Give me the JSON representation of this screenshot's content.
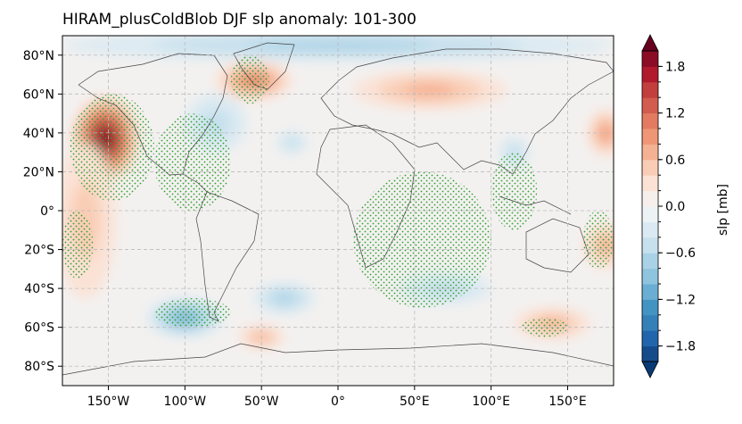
{
  "chart_data": {
    "type": "heatmap",
    "title": "HIRAM_plusColdBlob DJF slp anomaly: 101-300",
    "projection": "PlateCarree",
    "xlim": [
      -180,
      180
    ],
    "ylim": [
      -90,
      90
    ],
    "grid": true,
    "x_ticks": [
      -150,
      -100,
      -50,
      0,
      50,
      100,
      150
    ],
    "x_tick_labels": [
      "150°W",
      "100°W",
      "50°W",
      "0°",
      "50°E",
      "100°E",
      "150°E"
    ],
    "y_ticks": [
      80,
      60,
      40,
      20,
      0,
      -20,
      -40,
      -60,
      -80
    ],
    "y_tick_labels": [
      "80°N",
      "60°N",
      "40°N",
      "20°N",
      "0°",
      "20°S",
      "40°S",
      "60°S",
      "80°S"
    ],
    "colorbar": {
      "label": "slp [mb]",
      "levels_min": -2.0,
      "levels_max": 2.0,
      "level_step": 0.2,
      "extend": "both",
      "cmap": "RdBu_r",
      "tick_values": [
        1.8,
        1.2,
        0.6,
        0.0,
        -0.6,
        -1.2,
        -1.8
      ],
      "tick_labels": [
        "1.8",
        "1.2",
        "0.6",
        "0.0",
        "−0.6",
        "−1.2",
        "−1.8"
      ],
      "colors": [
        "#083a75",
        "#154b8a",
        "#2166ac",
        "#3580b9",
        "#4393c3",
        "#6aaed3",
        "#8ec4de",
        "#aad2e6",
        "#c6e0ed",
        "#dbeaf2",
        "#edf2f5",
        "#f7efec",
        "#fbe2d5",
        "#f9cdb5",
        "#f5b193",
        "#ee9675",
        "#e27b62",
        "#d15c4f",
        "#c23f3d",
        "#b01a2c",
        "#8a0c25",
        "#67001f"
      ]
    },
    "anomaly_features": [
      {
        "lon": -152,
        "lat": 37,
        "value": 2.0,
        "rx": 22,
        "ry": 22
      },
      {
        "lon": -55,
        "lat": 67,
        "value": 0.9,
        "rx": 25,
        "ry": 10
      },
      {
        "lon": 60,
        "lat": 62,
        "value": 0.7,
        "rx": 50,
        "ry": 10
      },
      {
        "lon": 175,
        "lat": 40,
        "value": 0.8,
        "rx": 12,
        "ry": 12
      },
      {
        "lon": 175,
        "lat": -18,
        "value": 0.7,
        "rx": 15,
        "ry": 12
      },
      {
        "lon": 140,
        "lat": -58,
        "value": 0.6,
        "rx": 25,
        "ry": 8
      },
      {
        "lon": -50,
        "lat": -65,
        "value": 0.5,
        "rx": 15,
        "ry": 6
      },
      {
        "lon": -165,
        "lat": -5,
        "value": 0.4,
        "rx": 20,
        "ry": 40
      },
      {
        "lon": -100,
        "lat": -55,
        "value": -1.0,
        "rx": 25,
        "ry": 10
      },
      {
        "lon": -80,
        "lat": 45,
        "value": -0.4,
        "rx": 20,
        "ry": 15
      },
      {
        "lon": -35,
        "lat": -45,
        "value": -0.6,
        "rx": 20,
        "ry": 8
      },
      {
        "lon": -30,
        "lat": 35,
        "value": -0.4,
        "rx": 10,
        "ry": 6
      },
      {
        "lon": 0,
        "lat": 85,
        "value": -0.6,
        "rx": 180,
        "ry": 8
      },
      {
        "lon": 70,
        "lat": -40,
        "value": -0.4,
        "rx": 30,
        "ry": 8
      },
      {
        "lon": 115,
        "lat": 30,
        "value": -0.4,
        "rx": 10,
        "ry": 8
      }
    ],
    "stippled_regions": [
      {
        "lon": [
          -175,
          -120
        ],
        "lat": [
          5,
          60
        ]
      },
      {
        "lon": [
          -120,
          -70
        ],
        "lat": [
          0,
          50
        ]
      },
      {
        "lon": [
          -180,
          -160
        ],
        "lat": [
          -35,
          0
        ]
      },
      {
        "lon": [
          -120,
          -70
        ],
        "lat": [
          -60,
          -45
        ]
      },
      {
        "lon": [
          -70,
          -45
        ],
        "lat": [
          55,
          80
        ]
      },
      {
        "lon": [
          10,
          100
        ],
        "lat": [
          -50,
          20
        ]
      },
      {
        "lon": [
          100,
          130
        ],
        "lat": [
          -10,
          30
        ]
      },
      {
        "lon": [
          160,
          180
        ],
        "lat": [
          -30,
          0
        ]
      },
      {
        "lon": [
          120,
          150
        ],
        "lat": [
          -65,
          -55
        ]
      }
    ]
  }
}
